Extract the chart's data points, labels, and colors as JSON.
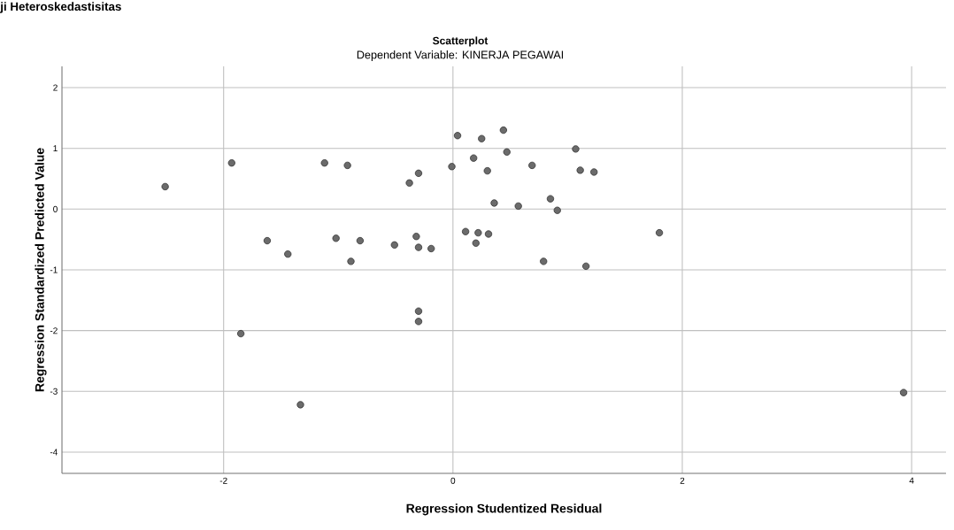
{
  "chart_data": {
    "type": "scatter",
    "title": "Scatterplot",
    "subtitle": "Dependent Variable: KINERJA PEGAWAI",
    "xlabel": "Regression Studentized Residual",
    "ylabel": "Regression Standardized Predicted Value",
    "annotations": [
      "ji Heteroskedastisitas"
    ],
    "x": [
      -2.51,
      -1.93,
      -1.12,
      -0.92,
      -0.38,
      -0.3,
      -0.01,
      0.04,
      0.25,
      0.18,
      0.3,
      0.36,
      -1.62,
      -1.44,
      -1.02,
      -0.81,
      -0.89,
      -0.51,
      -0.32,
      -0.3,
      -0.19,
      0.11,
      0.22,
      0.31,
      0.2,
      0.44,
      0.47,
      0.69,
      1.07,
      1.11,
      1.23,
      0.57,
      0.85,
      0.91,
      1.8,
      0.79,
      1.16,
      -0.3,
      -0.3,
      -1.85,
      -1.33,
      3.93
    ],
    "values": [
      0.37,
      0.76,
      0.76,
      0.72,
      0.43,
      0.59,
      0.7,
      1.21,
      1.16,
      0.84,
      0.63,
      0.1,
      -0.52,
      -0.74,
      -0.48,
      -0.52,
      -0.86,
      -0.59,
      -0.45,
      -0.63,
      -0.65,
      -0.37,
      -0.39,
      -0.41,
      -0.56,
      1.3,
      0.94,
      0.72,
      0.99,
      0.64,
      0.61,
      0.05,
      0.17,
      -0.02,
      -0.39,
      -0.86,
      -0.94,
      -1.68,
      -1.85,
      -2.05,
      -3.22,
      -3.02
    ],
    "color": "#6b6b6b",
    "grid": true,
    "xlim": [
      -3.41,
      4.3
    ],
    "ylim": [
      -4.35,
      2.35
    ],
    "xticks": [
      -2,
      0,
      2,
      4
    ],
    "yticks": [
      -4,
      -3,
      -2,
      -1,
      0,
      1,
      2
    ]
  }
}
